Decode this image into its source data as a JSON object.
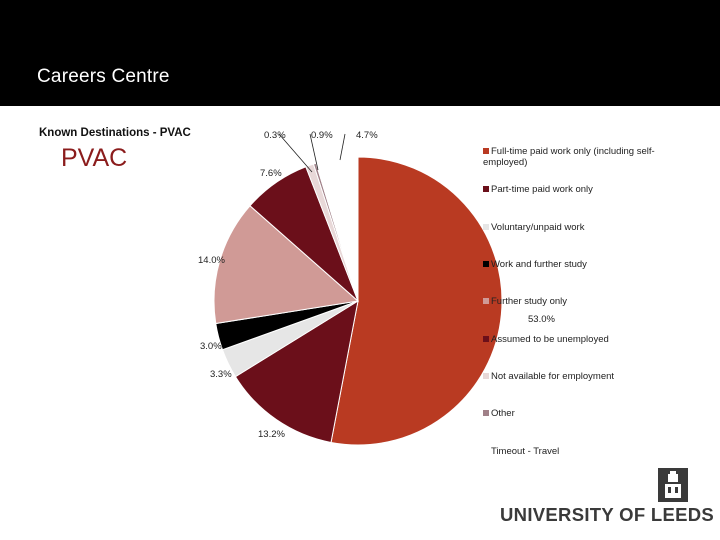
{
  "header": {
    "title": "Careers Centre"
  },
  "subtitle": "Known Destinations - PVAC",
  "big_label": "PVAC",
  "logo": {
    "text": "UNIVERSITY OF LEEDS"
  },
  "chart_data": {
    "type": "pie",
    "title": "",
    "legend_position": "right",
    "slices": [
      {
        "label": "Full-time paid work only (including self-employed)",
        "value": 53.0,
        "value_text": "53.0%",
        "color": "#b93a22"
      },
      {
        "label": "Part-time paid work only",
        "value": 13.2,
        "value_text": "13.2%",
        "color": "#6b0f1a"
      },
      {
        "label": "Voluntary/unpaid work",
        "value": 3.3,
        "value_text": "3.3%",
        "color": "#e6e6e6"
      },
      {
        "label": "Work and further study",
        "value": 3.0,
        "value_text": "3.0%",
        "color": "#000000"
      },
      {
        "label": "Further study only",
        "value": 14.0,
        "value_text": "14.0%",
        "color": "#d09a96"
      },
      {
        "label": "Assumed to be unemployed",
        "value": 7.6,
        "value_text": "7.6%",
        "color": "#6b0f1a"
      },
      {
        "label": "Not available for employment",
        "value": 0.9,
        "value_text": "0.9%",
        "color": "#e8d8d8"
      },
      {
        "label": "Other",
        "value": 0.3,
        "value_text": "0.3%",
        "color": "#a08088"
      },
      {
        "label": "Timeout - Travel",
        "value": 4.7,
        "value_text": "4.7%",
        "color": "#ffffff"
      }
    ],
    "legend_display": [
      {
        "text": "Full-time paid work only (including self-employed)",
        "color": "#b93a22"
      },
      {
        "text": "Part-time paid work only",
        "color": "#6b0f1a"
      },
      {
        "text": "Voluntary/unpaid work",
        "color": "#e6e6e6"
      },
      {
        "text": "Work and further study",
        "color": "#000000"
      },
      {
        "text": "Further study only",
        "color": "#d09a96"
      },
      {
        "text": "Assumed to be unemployed",
        "color": "#6b0f1a"
      },
      {
        "text": "Not available for employment",
        "color": "#e8d8d8"
      },
      {
        "text": "Other",
        "color": "#a08088"
      },
      {
        "text": "Timeout - Travel",
        "color": "#ffffff"
      }
    ]
  }
}
